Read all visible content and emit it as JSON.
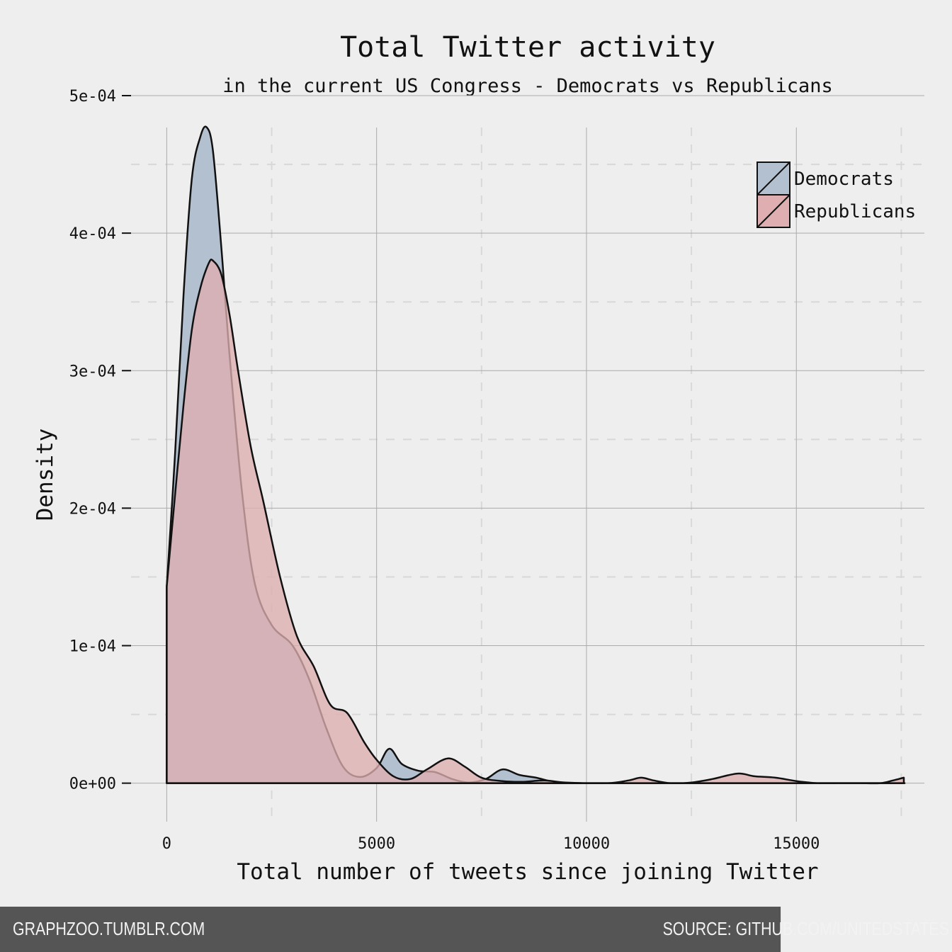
{
  "chart_data": {
    "type": "area",
    "title": "Total Twitter activity",
    "subtitle": "in the current US Congress - Democrats vs Republicans",
    "xlabel": "Total number of tweets since joining Twitter",
    "ylabel": "Density",
    "xlim": [
      -850,
      18050
    ],
    "ylim": [
      -2.8e-05,
      0.0005
    ],
    "x_ticks": [
      0,
      5000,
      10000,
      15000
    ],
    "x_tick_labels": [
      "0",
      "5000",
      "10000",
      "15000"
    ],
    "y_ticks": [
      0,
      0.0001,
      0.0002,
      0.0003,
      0.0004,
      0.0005
    ],
    "y_tick_labels": [
      "0e+00",
      "1e-04",
      "2e-04",
      "3e-04",
      "4e-04",
      "5e-04"
    ],
    "grid": true,
    "legend_position": "top-right",
    "series": [
      {
        "name": "Democrats",
        "color": "#b3c0cf",
        "x": [
          0,
          200,
          400,
          600,
          800,
          950,
          1100,
          1300,
          1500,
          1800,
          2100,
          2500,
          3000,
          3400,
          3800,
          4200,
          4600,
          5000,
          5300,
          5600,
          6000,
          6400,
          6800,
          7200,
          7600,
          8000,
          8400,
          8800,
          9200,
          9600,
          10000,
          10500,
          11000,
          11500,
          12000,
          13000,
          14000,
          15000,
          16000,
          17000,
          17580
        ],
        "values": [
          0.000143,
          0.00024,
          0.000355,
          0.00044,
          0.00047,
          0.000477,
          0.00046,
          0.00039,
          0.00031,
          0.00021,
          0.000145,
          0.000115,
          0.0001,
          7.5e-05,
          4e-05,
          1.2e-05,
          4.5e-06,
          1.1e-05,
          2.5e-05,
          1.4e-05,
          9e-06,
          8e-06,
          3e-06,
          5e-07,
          3e-06,
          1e-05,
          6e-06,
          4e-06,
          1e-06,
          0,
          0,
          0,
          0,
          0,
          0,
          0,
          0,
          0,
          0,
          0,
          0
        ]
      },
      {
        "name": "Republicans",
        "color": "#deaeb0",
        "x": [
          0,
          200,
          400,
          600,
          800,
          1000,
          1100,
          1300,
          1500,
          1700,
          2000,
          2300,
          2700,
          3100,
          3500,
          3900,
          4300,
          4700,
          5000,
          5400,
          5800,
          6200,
          6700,
          7100,
          7500,
          8000,
          8500,
          9000,
          9500,
          10500,
          11000,
          11300,
          11600,
          12000,
          12500,
          13000,
          13600,
          14000,
          14500,
          15000,
          15500,
          16000,
          16500,
          17000,
          17300,
          17560
        ],
        "values": [
          0.000143,
          0.00021,
          0.000275,
          0.00033,
          0.00036,
          0.000378,
          0.00038,
          0.00037,
          0.00034,
          0.0003,
          0.000245,
          0.000205,
          0.00015,
          0.000107,
          8.5e-05,
          5.7e-05,
          5.1e-05,
          3e-05,
          1.7e-05,
          5e-06,
          3e-06,
          1e-05,
          1.8e-05,
          1.2e-05,
          4e-06,
          1.5e-06,
          1e-06,
          2e-06,
          5e-07,
          0,
          2e-06,
          4e-06,
          2e-06,
          0,
          5e-07,
          3e-06,
          7e-06,
          5e-06,
          4e-06,
          1.5e-06,
          0,
          0,
          0,
          0,
          2e-06,
          4e-06
        ]
      }
    ]
  },
  "footer": {
    "left": "GRAPHZOO.TUMBLR.COM",
    "right": "SOURCE: GITHUB.COM/UNITEDSTATES"
  }
}
